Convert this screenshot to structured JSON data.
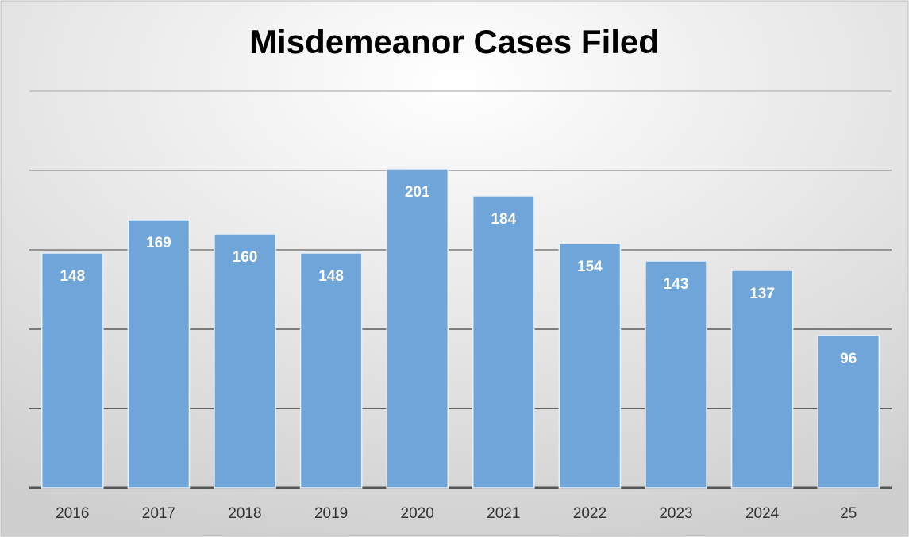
{
  "chart_data": {
    "type": "bar",
    "title": "Misdemeanor Cases Filed",
    "categories": [
      "2016",
      "2017",
      "2018",
      "2019",
      "2020",
      "2021",
      "2022",
      "2023",
      "2024",
      "25"
    ],
    "values": [
      148,
      169,
      160,
      148,
      201,
      184,
      154,
      143,
      137,
      96
    ],
    "color": "#6fa5d8",
    "ylim": [
      0,
      250
    ],
    "yticks": [
      0,
      50,
      100,
      150,
      200,
      250
    ],
    "grid": true
  }
}
